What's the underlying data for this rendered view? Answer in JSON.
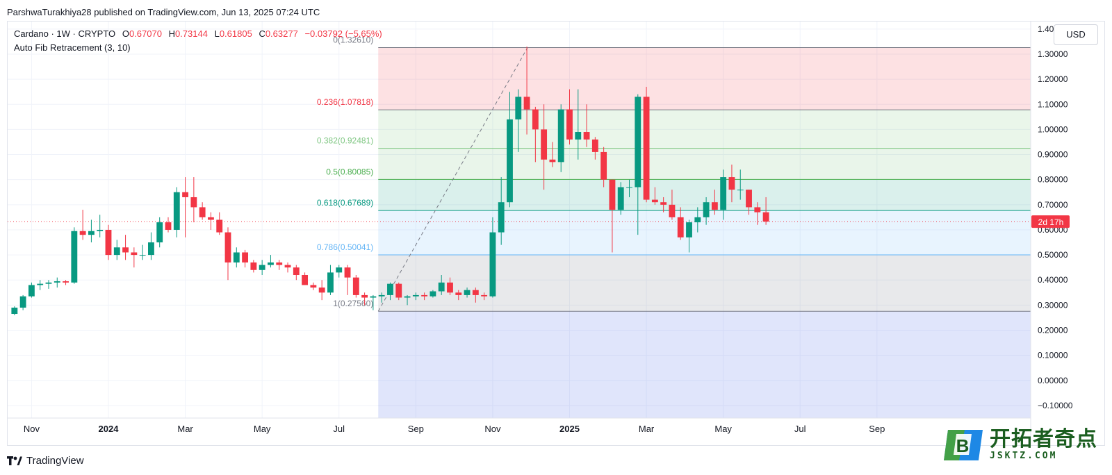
{
  "header": {
    "publisher_line": "ParshwaTurakhiya28 published on TradingView.com, Jun 13, 2025 07:24 UTC"
  },
  "legend": {
    "symbol": "Cardano · 1W · CRYPTO",
    "o_label": "O",
    "o_value": "0.67070",
    "h_label": "H",
    "h_value": "0.73144",
    "l_label": "L",
    "l_value": "0.61805",
    "c_label": "C",
    "c_value": "0.63277",
    "change": "−0.03792 (−5.65%)",
    "indicator": "Auto Fib Retracement (3, 10)"
  },
  "currency_button": "USD",
  "countdown_label": "2d 17h",
  "footer": {
    "brand": "TradingView"
  },
  "watermark": {
    "cn": "开拓者奇点",
    "en": "JSKTZ.COM",
    "mark": "B"
  },
  "colors": {
    "up": "#089981",
    "down": "#f23645",
    "price_line": "#f23645"
  },
  "chart_data": {
    "type": "candlestick",
    "timeframe": "1W",
    "ylim": [
      -0.15,
      1.43
    ],
    "y_ticks": [
      "1.40000",
      "1.30000",
      "1.20000",
      "1.10000",
      "1.00000",
      "0.90000",
      "0.80000",
      "0.70000",
      "0.60000",
      "0.50000",
      "0.40000",
      "0.30000",
      "0.20000",
      "0.10000",
      "0.00000",
      "−0.10000"
    ],
    "x_ticks": [
      {
        "label": "Nov",
        "idx": 2,
        "bold": false
      },
      {
        "label": "2024",
        "idx": 11,
        "bold": true
      },
      {
        "label": "Mar",
        "idx": 20,
        "bold": false
      },
      {
        "label": "May",
        "idx": 29,
        "bold": false
      },
      {
        "label": "Jul",
        "idx": 38,
        "bold": false
      },
      {
        "label": "Sep",
        "idx": 47,
        "bold": false
      },
      {
        "label": "Nov",
        "idx": 56,
        "bold": false
      },
      {
        "label": "2025",
        "idx": 65,
        "bold": true
      },
      {
        "label": "Mar",
        "idx": 74,
        "bold": false
      },
      {
        "label": "May",
        "idx": 83,
        "bold": false
      },
      {
        "label": "Jul",
        "idx": 92,
        "bold": false
      },
      {
        "label": "Sep",
        "idx": 101,
        "bold": false
      }
    ],
    "x_index_range": [
      -0.8,
      119
    ],
    "fib_start_idx": 42.6,
    "fib_high_idx": 60,
    "current_price": 0.63277,
    "fib_levels": [
      {
        "ratio": "0",
        "price": 1.3261,
        "label": "0(1.32610)",
        "line": "#787b86",
        "fill": null
      },
      {
        "ratio": "0.236",
        "price": 1.07818,
        "label": "0.236(1.07818)",
        "line": "#787b86",
        "fill": "rgba(242,54,69,0.15)",
        "text": "#f23645"
      },
      {
        "ratio": "0.382",
        "price": 0.92481,
        "label": "0.382(0.92481)",
        "line": "#81c784",
        "fill": "rgba(129,199,132,0.17)",
        "text": "#81c784"
      },
      {
        "ratio": "0.5",
        "price": 0.80085,
        "label": "0.5(0.80085)",
        "line": "#4caf50",
        "fill": "rgba(76,175,80,0.12)",
        "text": "#4caf50"
      },
      {
        "ratio": "0.618",
        "price": 0.67689,
        "label": "0.618(0.67689)",
        "line": "#089981",
        "fill": "rgba(8,153,129,0.15)",
        "text": "#089981"
      },
      {
        "ratio": "0.786",
        "price": 0.50041,
        "label": "0.786(0.50041)",
        "line": "#64b5f6",
        "fill": "rgba(100,181,246,0.15)",
        "text": "#64b5f6"
      },
      {
        "ratio": "1",
        "price": 0.2756,
        "label": "1(0.27560)",
        "line": "#787b86",
        "fill": "rgba(120,123,134,0.17)",
        "text": "#787b86"
      },
      {
        "ratio": "ext",
        "price": -0.15,
        "label": "",
        "line": null,
        "fill": "rgba(98,126,234,0.2)",
        "text": null
      }
    ],
    "candles": [
      [
        0.265,
        0.295,
        0.26,
        0.29
      ],
      [
        0.29,
        0.34,
        0.28,
        0.335
      ],
      [
        0.335,
        0.39,
        0.33,
        0.38
      ],
      [
        0.38,
        0.4,
        0.36,
        0.385
      ],
      [
        0.385,
        0.4,
        0.365,
        0.39
      ],
      [
        0.39,
        0.41,
        0.37,
        0.395
      ],
      [
        0.395,
        0.4,
        0.38,
        0.39
      ],
      [
        0.39,
        0.61,
        0.385,
        0.595
      ],
      [
        0.595,
        0.68,
        0.56,
        0.58
      ],
      [
        0.58,
        0.64,
        0.55,
        0.595
      ],
      [
        0.595,
        0.66,
        0.57,
        0.6
      ],
      [
        0.6,
        0.62,
        0.48,
        0.5
      ],
      [
        0.5,
        0.56,
        0.48,
        0.53
      ],
      [
        0.53,
        0.58,
        0.48,
        0.51
      ],
      [
        0.51,
        0.53,
        0.45,
        0.5
      ],
      [
        0.5,
        0.54,
        0.48,
        0.5
      ],
      [
        0.5,
        0.59,
        0.48,
        0.55
      ],
      [
        0.55,
        0.65,
        0.53,
        0.63
      ],
      [
        0.63,
        0.65,
        0.59,
        0.6
      ],
      [
        0.6,
        0.77,
        0.57,
        0.75
      ],
      [
        0.75,
        0.81,
        0.57,
        0.73
      ],
      [
        0.73,
        0.81,
        0.63,
        0.69
      ],
      [
        0.69,
        0.71,
        0.64,
        0.65
      ],
      [
        0.65,
        0.67,
        0.6,
        0.64
      ],
      [
        0.64,
        0.67,
        0.58,
        0.59
      ],
      [
        0.59,
        0.61,
        0.4,
        0.47
      ],
      [
        0.47,
        0.53,
        0.45,
        0.51
      ],
      [
        0.51,
        0.52,
        0.45,
        0.47
      ],
      [
        0.47,
        0.48,
        0.43,
        0.44
      ],
      [
        0.44,
        0.48,
        0.42,
        0.46
      ],
      [
        0.46,
        0.5,
        0.45,
        0.47
      ],
      [
        0.47,
        0.48,
        0.44,
        0.46
      ],
      [
        0.46,
        0.47,
        0.43,
        0.45
      ],
      [
        0.45,
        0.46,
        0.4,
        0.42
      ],
      [
        0.42,
        0.43,
        0.38,
        0.38
      ],
      [
        0.38,
        0.39,
        0.36,
        0.37
      ],
      [
        0.37,
        0.4,
        0.32,
        0.35
      ],
      [
        0.35,
        0.46,
        0.34,
        0.43
      ],
      [
        0.43,
        0.46,
        0.41,
        0.45
      ],
      [
        0.45,
        0.46,
        0.34,
        0.41
      ],
      [
        0.41,
        0.42,
        0.33,
        0.34
      ],
      [
        0.34,
        0.35,
        0.3,
        0.33
      ],
      [
        0.33,
        0.34,
        0.28,
        0.335
      ],
      [
        0.335,
        0.35,
        0.31,
        0.34
      ],
      [
        0.34,
        0.39,
        0.32,
        0.385
      ],
      [
        0.385,
        0.39,
        0.32,
        0.33
      ],
      [
        0.33,
        0.34,
        0.3,
        0.335
      ],
      [
        0.335,
        0.35,
        0.32,
        0.34
      ],
      [
        0.34,
        0.35,
        0.32,
        0.335
      ],
      [
        0.335,
        0.36,
        0.33,
        0.355
      ],
      [
        0.355,
        0.42,
        0.34,
        0.39
      ],
      [
        0.39,
        0.41,
        0.34,
        0.35
      ],
      [
        0.35,
        0.36,
        0.32,
        0.34
      ],
      [
        0.34,
        0.37,
        0.33,
        0.36
      ],
      [
        0.36,
        0.37,
        0.31,
        0.34
      ],
      [
        0.34,
        0.35,
        0.32,
        0.335
      ],
      [
        0.335,
        0.65,
        0.33,
        0.59
      ],
      [
        0.59,
        0.81,
        0.54,
        0.71
      ],
      [
        0.71,
        1.15,
        0.69,
        1.04
      ],
      [
        1.04,
        1.16,
        0.91,
        1.13
      ],
      [
        1.13,
        1.33,
        0.98,
        1.08
      ],
      [
        1.08,
        1.09,
        0.87,
        1.0
      ],
      [
        1.0,
        1.1,
        0.76,
        0.88
      ],
      [
        0.88,
        0.95,
        0.85,
        0.87
      ],
      [
        0.87,
        1.1,
        0.83,
        1.08
      ],
      [
        1.08,
        1.16,
        0.94,
        0.96
      ],
      [
        0.96,
        1.16,
        0.88,
        0.99
      ],
      [
        0.99,
        1.1,
        0.93,
        0.96
      ],
      [
        0.96,
        0.97,
        0.88,
        0.91
      ],
      [
        0.91,
        0.93,
        0.77,
        0.8
      ],
      [
        0.8,
        0.8,
        0.51,
        0.68
      ],
      [
        0.68,
        0.79,
        0.66,
        0.77
      ],
      [
        0.77,
        0.8,
        0.73,
        0.77
      ],
      [
        0.77,
        1.14,
        0.58,
        1.13
      ],
      [
        1.13,
        1.17,
        0.71,
        0.72
      ],
      [
        0.72,
        0.77,
        0.7,
        0.71
      ],
      [
        0.71,
        0.73,
        0.67,
        0.7
      ],
      [
        0.7,
        0.76,
        0.64,
        0.65
      ],
      [
        0.65,
        0.69,
        0.56,
        0.57
      ],
      [
        0.57,
        0.64,
        0.51,
        0.63
      ],
      [
        0.63,
        0.69,
        0.59,
        0.65
      ],
      [
        0.65,
        0.73,
        0.62,
        0.71
      ],
      [
        0.71,
        0.76,
        0.66,
        0.68
      ],
      [
        0.68,
        0.84,
        0.64,
        0.81
      ],
      [
        0.81,
        0.86,
        0.71,
        0.76
      ],
      [
        0.76,
        0.84,
        0.72,
        0.76
      ],
      [
        0.76,
        0.76,
        0.66,
        0.69
      ],
      [
        0.69,
        0.71,
        0.62,
        0.67
      ],
      [
        0.67,
        0.73,
        0.62,
        0.63277
      ]
    ]
  }
}
